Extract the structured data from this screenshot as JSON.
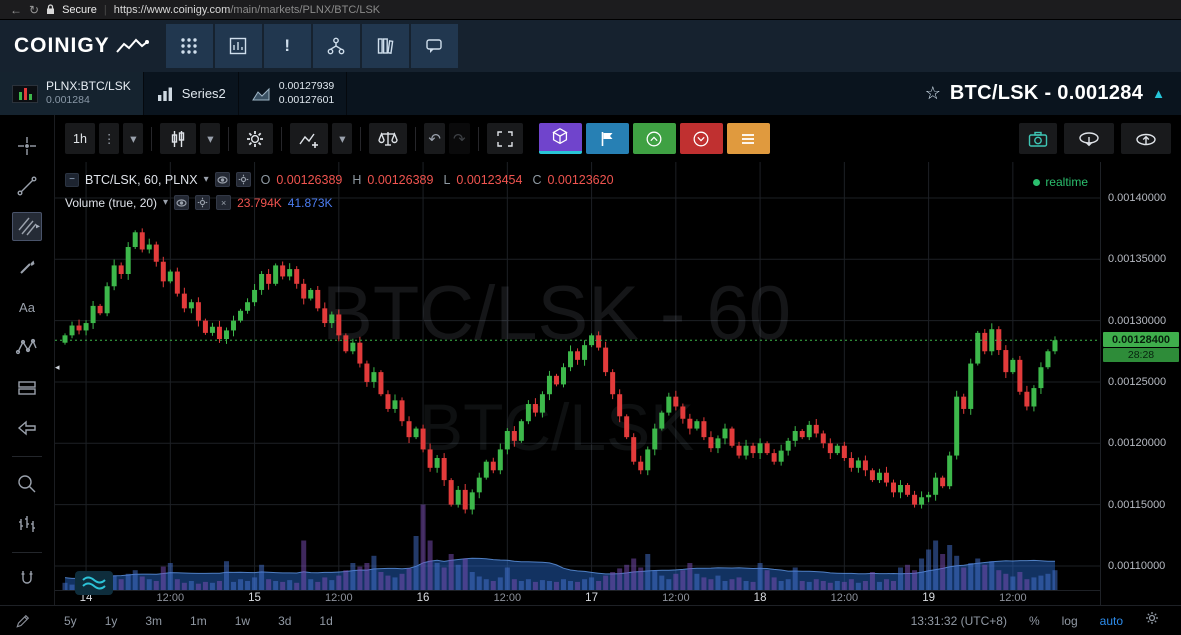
{
  "glyphs": {
    "back": "←",
    "refresh": "↻",
    "caret": "▾",
    "dots": "⋮",
    "undo": "↶",
    "redo": "↷",
    "close_x": "×",
    "star": "☆",
    "up_arrow": "▲",
    "minus": "−",
    "left_marker": "◂",
    "text_tool": "Aa",
    "exclaim": "!"
  },
  "colors": {
    "up": "#3db84b",
    "down": "#e23b3b",
    "teal": "#26c6da"
  },
  "browser": {
    "secure": "Secure",
    "host": "https://www.coinigy.com",
    "path": "/main/markets/PLNX/BTC/LSK",
    "sep": "|"
  },
  "nav": {
    "logo": "COINIGY"
  },
  "tabs": {
    "active": {
      "symbol": "PLNX:BTC/LSK",
      "price": "0.001284"
    },
    "series": {
      "label": "Series2"
    },
    "quote": {
      "bid": "0.00127939",
      "ask": "0.00127601"
    },
    "header": {
      "title": "BTC/LSK - 0.001284"
    }
  },
  "toolbar": {
    "interval": "1h"
  },
  "legend": {
    "title": "BTC/LSK, 60, PLNX",
    "o_label": "O",
    "o_value": "0.00126389",
    "h_label": "H",
    "h_value": "0.00126389",
    "l_label": "L",
    "l_value": "0.00123454",
    "c_label": "C",
    "c_value": "0.00123620"
  },
  "volume_legend": {
    "title": "Volume (true, 20)",
    "value_red": "23.794K",
    "value_blue": "41.873K"
  },
  "status": {
    "realtime": "realtime"
  },
  "price_axis": {
    "badge": "0.00128400",
    "countdown": "28:28"
  },
  "bottom_bar": {
    "ranges": [
      "5y",
      "1y",
      "3m",
      "1m",
      "1w",
      "3d",
      "1d"
    ],
    "clock": "13:31:32 (UTC+8)",
    "percent": "%",
    "log": "log",
    "auto": "auto"
  },
  "chart_data": {
    "type": "candlestick",
    "symbol": "BTC/LSK",
    "interval": "60",
    "exchange": "PLNX",
    "watermark_line1": "BTC/LSK - 60",
    "watermark_line2": "BTC/LSK",
    "last_price": 0.001284,
    "price_range": {
      "min": 0.0010804,
      "max": 0.0014293
    },
    "axis_ticks": [
      {
        "label": "0.00140000",
        "value": 0.0014
      },
      {
        "label": "0.00135000",
        "value": 0.00135
      },
      {
        "label": "0.00130000",
        "value": 0.0013
      },
      {
        "label": "0.00125000",
        "value": 0.00125
      },
      {
        "label": "0.00120000",
        "value": 0.0012
      },
      {
        "label": "0.00115000",
        "value": 0.00115
      },
      {
        "label": "0.00110000",
        "value": 0.0011
      }
    ],
    "time_ticks": [
      {
        "label": "14",
        "index": 3,
        "major": true
      },
      {
        "label": "12:00",
        "index": 15,
        "major": false
      },
      {
        "label": "15",
        "index": 27,
        "major": true
      },
      {
        "label": "12:00",
        "index": 39,
        "major": false
      },
      {
        "label": "16",
        "index": 51,
        "major": true
      },
      {
        "label": "12:00",
        "index": 63,
        "major": false
      },
      {
        "label": "17",
        "index": 75,
        "major": true
      },
      {
        "label": "12:00",
        "index": 87,
        "major": false
      },
      {
        "label": "18",
        "index": 99,
        "major": true
      },
      {
        "label": "12:00",
        "index": 111,
        "major": false
      },
      {
        "label": "19",
        "index": 123,
        "major": true
      },
      {
        "label": "12:00",
        "index": 135,
        "major": false
      }
    ],
    "close": [
      0.001288,
      0.001296,
      0.001292,
      0.001298,
      0.001312,
      0.001306,
      0.001328,
      0.001345,
      0.001338,
      0.00136,
      0.001372,
      0.001358,
      0.001362,
      0.001348,
      0.001332,
      0.00134,
      0.001322,
      0.00131,
      0.001315,
      0.0013,
      0.00129,
      0.001295,
      0.001285,
      0.001292,
      0.0013,
      0.001308,
      0.001315,
      0.001325,
      0.001338,
      0.00133,
      0.001345,
      0.001336,
      0.001342,
      0.00133,
      0.001318,
      0.001325,
      0.00131,
      0.001298,
      0.001305,
      0.001288,
      0.001275,
      0.001282,
      0.001265,
      0.00125,
      0.001258,
      0.00124,
      0.001228,
      0.001235,
      0.001218,
      0.001205,
      0.001212,
      0.001195,
      0.00118,
      0.001188,
      0.00117,
      0.00115,
      0.001162,
      0.001146,
      0.00116,
      0.001172,
      0.001185,
      0.001178,
      0.001195,
      0.00121,
      0.001202,
      0.001218,
      0.001232,
      0.001225,
      0.00124,
      0.001255,
      0.001248,
      0.001262,
      0.001275,
      0.001268,
      0.00128,
      0.001288,
      0.001278,
      0.001258,
      0.00124,
      0.001222,
      0.001205,
      0.001185,
      0.001178,
      0.001195,
      0.001212,
      0.001225,
      0.001238,
      0.00123,
      0.00122,
      0.001212,
      0.001218,
      0.001205,
      0.001196,
      0.001204,
      0.001212,
      0.001198,
      0.00119,
      0.001198,
      0.001192,
      0.0012,
      0.001192,
      0.001185,
      0.001194,
      0.001202,
      0.00121,
      0.001205,
      0.001215,
      0.001208,
      0.0012,
      0.001192,
      0.001198,
      0.001188,
      0.00118,
      0.001186,
      0.001178,
      0.00117,
      0.001176,
      0.001168,
      0.00116,
      0.001166,
      0.001158,
      0.00115,
      0.001156,
      0.001158,
      0.001172,
      0.001165,
      0.00119,
      0.001238,
      0.001228,
      0.001265,
      0.00129,
      0.001275,
      0.001293,
      0.001276,
      0.001258,
      0.001268,
      0.001242,
      0.00123,
      0.001245,
      0.001262,
      0.001275,
      0.001284
    ],
    "volume": [
      8,
      6,
      7,
      10,
      12,
      9,
      14,
      16,
      12,
      18,
      22,
      15,
      12,
      10,
      26,
      30,
      12,
      8,
      10,
      7,
      9,
      8,
      10,
      32,
      9,
      12,
      10,
      14,
      28,
      12,
      10,
      9,
      11,
      8,
      55,
      12,
      9,
      14,
      11,
      16,
      22,
      30,
      26,
      30,
      38,
      20,
      16,
      14,
      18,
      24,
      60,
      95,
      55,
      30,
      25,
      40,
      28,
      35,
      20,
      15,
      12,
      10,
      14,
      25,
      12,
      10,
      12,
      9,
      11,
      10,
      9,
      12,
      10,
      9,
      12,
      14,
      10,
      16,
      20,
      24,
      28,
      35,
      25,
      40,
      22,
      16,
      12,
      18,
      22,
      30,
      18,
      14,
      12,
      16,
      10,
      12,
      14,
      10,
      9,
      30,
      22,
      14,
      10,
      12,
      25,
      10,
      9,
      12,
      10,
      8,
      10,
      9,
      12,
      8,
      10,
      20,
      9,
      12,
      10,
      25,
      28,
      22,
      35,
      45,
      55,
      40,
      50,
      38,
      25,
      30,
      35,
      28,
      32,
      22,
      18,
      15,
      20,
      12,
      14,
      16,
      18,
      22
    ]
  }
}
